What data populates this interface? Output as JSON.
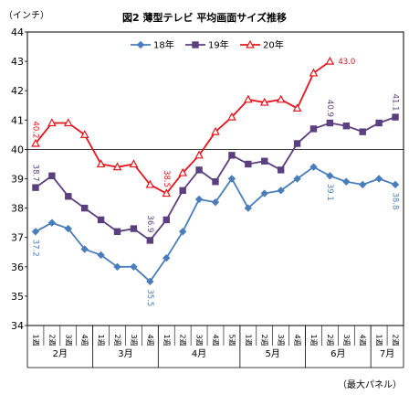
{
  "chart_data": {
    "type": "line",
    "title": "図2 薄型テレビ 平均画面サイズ推移",
    "ylabel": "（インチ）",
    "note": "（最大パネル）",
    "ylim": [
      34,
      44
    ],
    "yticks": [
      34,
      35,
      36,
      37,
      38,
      39,
      40,
      41,
      42,
      43,
      44
    ],
    "grid": false,
    "reference_line": 40,
    "legend_position": "top",
    "x": [
      "1週",
      "2週",
      "3週",
      "4週",
      "1週",
      "2週",
      "3週",
      "4週",
      "1週",
      "2週",
      "3週",
      "4週",
      "5週",
      "1週",
      "2週",
      "3週",
      "4週",
      "1週",
      "2週",
      "3週",
      "4週",
      "1週",
      "2週"
    ],
    "months": [
      {
        "label": "2月",
        "weeks": 4
      },
      {
        "label": "3月",
        "weeks": 4
      },
      {
        "label": "4月",
        "weeks": 5
      },
      {
        "label": "5月",
        "weeks": 4
      },
      {
        "label": "6月",
        "weeks": 4
      },
      {
        "label": "7月",
        "weeks": 2
      }
    ],
    "series": [
      {
        "name": "18年",
        "color": "#4a7ebb",
        "marker": "diamond",
        "values": [
          37.2,
          37.5,
          37.3,
          36.6,
          36.4,
          36.0,
          36.0,
          35.5,
          36.3,
          37.2,
          38.3,
          38.2,
          39.0,
          38.0,
          38.5,
          38.6,
          39.0,
          39.4,
          39.1,
          38.9,
          38.8,
          39.0,
          38.8
        ]
      },
      {
        "name": "19年",
        "color": "#5b3f7e",
        "marker": "square",
        "values": [
          38.7,
          39.1,
          38.4,
          38.0,
          37.6,
          37.2,
          37.3,
          36.9,
          37.6,
          38.6,
          39.3,
          38.9,
          39.8,
          39.5,
          39.6,
          39.3,
          40.2,
          40.7,
          40.9,
          40.8,
          40.6,
          40.9,
          41.1
        ]
      },
      {
        "name": "20年",
        "color": "#e8141c",
        "marker": "triangle",
        "values": [
          40.2,
          40.9,
          40.9,
          40.5,
          39.5,
          39.4,
          39.5,
          38.8,
          38.5,
          39.2,
          39.8,
          40.6,
          41.1,
          41.7,
          41.6,
          41.7,
          41.4,
          42.6,
          43.0,
          null,
          null,
          null,
          null
        ]
      }
    ],
    "data_labels": [
      {
        "series": 0,
        "index": 0,
        "text": "37.2"
      },
      {
        "series": 0,
        "index": 7,
        "text": "35.5"
      },
      {
        "series": 0,
        "index": 18,
        "text": "39.1"
      },
      {
        "series": 0,
        "index": 22,
        "text": "38.8"
      },
      {
        "series": 1,
        "index": 0,
        "text": "38.7"
      },
      {
        "series": 1,
        "index": 7,
        "text": "36.9"
      },
      {
        "series": 1,
        "index": 18,
        "text": "40.9"
      },
      {
        "series": 1,
        "index": 22,
        "text": "41.1"
      },
      {
        "series": 2,
        "index": 0,
        "text": "40.2"
      },
      {
        "series": 2,
        "index": 8,
        "text": "38.5"
      },
      {
        "series": 2,
        "index": 18,
        "text": "43.0"
      }
    ]
  }
}
